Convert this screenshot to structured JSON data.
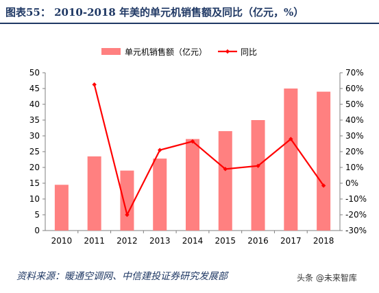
{
  "header": {
    "title": "图表55：  2010-2018 年美的单元机销售额及同比（亿元，%）"
  },
  "source": "资料来源：暖通空调网、中信建投证券研究发展部",
  "watermark": "头条 @未来智库",
  "chart_data": {
    "type": "bar",
    "categories": [
      "2010",
      "2011",
      "2012",
      "2013",
      "2014",
      "2015",
      "2016",
      "2017",
      "2018"
    ],
    "series": [
      {
        "name": "单元机销售额（亿元）",
        "type": "bar",
        "axis": "left",
        "color": "#ff8080",
        "values": [
          14.5,
          23.5,
          19,
          22.8,
          29,
          31.5,
          35,
          45,
          44
        ]
      },
      {
        "name": "同比",
        "type": "line",
        "axis": "right",
        "color": "#ff0000",
        "values": [
          null,
          62.5,
          -20,
          21,
          26.5,
          9,
          11,
          28,
          -1.5
        ]
      }
    ],
    "y_left": {
      "min": 0,
      "max": 50,
      "step": 5,
      "ticks": [
        "0",
        "5",
        "10",
        "15",
        "20",
        "25",
        "30",
        "35",
        "40",
        "45",
        "50"
      ]
    },
    "y_right": {
      "min": -30,
      "max": 70,
      "step": 10,
      "ticks": [
        "-30%",
        "-20%",
        "-10%",
        "0%",
        "10%",
        "20%",
        "30%",
        "40%",
        "50%",
        "60%",
        "70%"
      ]
    },
    "legend_position": "top",
    "grid": false
  }
}
